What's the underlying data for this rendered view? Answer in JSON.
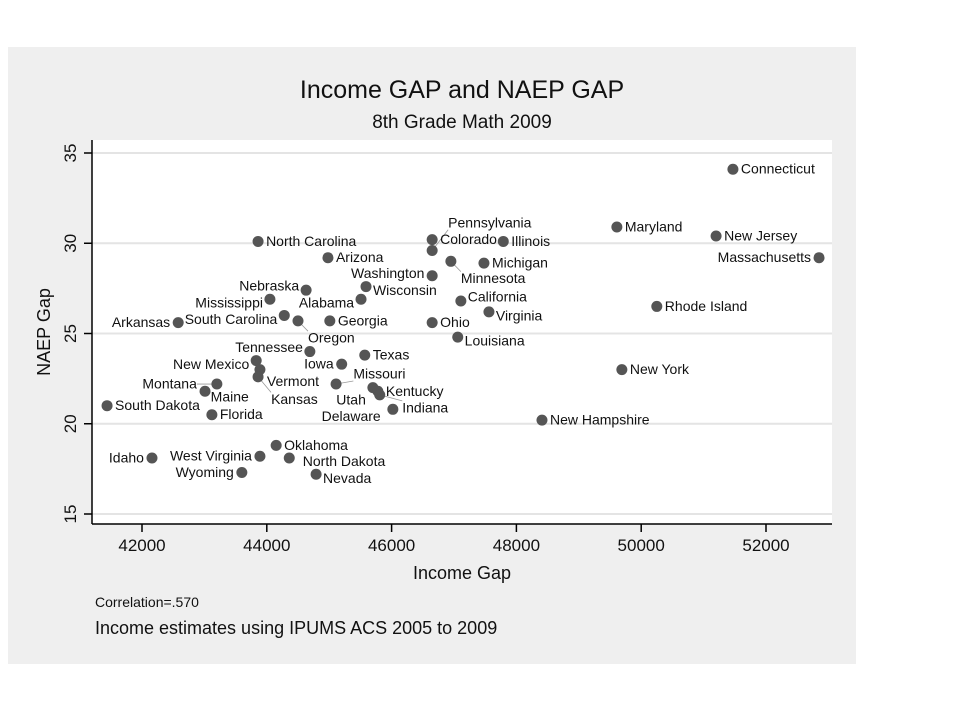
{
  "chart_data": {
    "type": "scatter",
    "title": "Income GAP and NAEP GAP",
    "subtitle": "8th Grade Math 2009",
    "xlabel": "Income Gap",
    "ylabel": "NAEP Gap",
    "xlim": [
      41300,
      53000
    ],
    "ylim": [
      15,
      35
    ],
    "xticks": [
      42000,
      44000,
      46000,
      48000,
      50000,
      52000
    ],
    "yticks": [
      15,
      20,
      25,
      30,
      35
    ],
    "grid": "horizontal",
    "notes": [
      "Correlation=.570",
      "Income estimates using IPUMS ACS 2005 to 2009"
    ],
    "colors": {
      "panel": "#efefef",
      "plot": "#ffffff",
      "marker": "#555555",
      "grid": "#e4e4e4"
    },
    "points": [
      {
        "label": "Connecticut",
        "x": 51470,
        "y": 34.1
      },
      {
        "label": "Maryland",
        "x": 49610,
        "y": 30.9
      },
      {
        "label": "New Jersey",
        "x": 51200,
        "y": 30.4
      },
      {
        "label": "Massachusetts",
        "x": 52850,
        "y": 29.2
      },
      {
        "label": "Rhode Island",
        "x": 50250,
        "y": 26.5
      },
      {
        "label": "New York",
        "x": 49690,
        "y": 23.0
      },
      {
        "label": "New Hampshire",
        "x": 48410,
        "y": 20.2
      },
      {
        "label": "North Carolina",
        "x": 43860,
        "y": 30.1
      },
      {
        "label": "Arizona",
        "x": 44980,
        "y": 29.2
      },
      {
        "label": "Colorado",
        "x": 46650,
        "y": 30.2
      },
      {
        "label": "Illinois",
        "x": 47790,
        "y": 30.1
      },
      {
        "label": "Pennsylvania",
        "x": 46650,
        "y": 29.6
      },
      {
        "label": "Minnesota",
        "x": 46950,
        "y": 29.0
      },
      {
        "label": "Michigan",
        "x": 47480,
        "y": 28.9
      },
      {
        "label": "Washington",
        "x": 46650,
        "y": 28.2
      },
      {
        "label": "Wisconsin",
        "x": 45590,
        "y": 27.6
      },
      {
        "label": "Nebraska",
        "x": 44630,
        "y": 27.4
      },
      {
        "label": "Mississippi",
        "x": 44050,
        "y": 26.9
      },
      {
        "label": "Alabama",
        "x": 45510,
        "y": 26.9
      },
      {
        "label": "California",
        "x": 47110,
        "y": 26.8
      },
      {
        "label": "Virginia",
        "x": 47560,
        "y": 26.2
      },
      {
        "label": "South Carolina",
        "x": 44280,
        "y": 26.0
      },
      {
        "label": "Oregon",
        "x": 44500,
        "y": 25.7
      },
      {
        "label": "Georgia",
        "x": 45010,
        "y": 25.7
      },
      {
        "label": "Arkansas",
        "x": 42580,
        "y": 25.6
      },
      {
        "label": "Ohio",
        "x": 46650,
        "y": 25.6
      },
      {
        "label": "Louisiana",
        "x": 47060,
        "y": 24.8
      },
      {
        "label": "Tennessee",
        "x": 44690,
        "y": 24.0
      },
      {
        "label": "New Mexico",
        "x": 43830,
        "y": 23.5
      },
      {
        "label": "Texas",
        "x": 45570,
        "y": 23.8
      },
      {
        "label": "Iowa",
        "x": 45200,
        "y": 23.3
      },
      {
        "label": "Vermont",
        "x": 43890,
        "y": 23.0
      },
      {
        "label": "Kansas",
        "x": 43860,
        "y": 22.6
      },
      {
        "label": "Montana",
        "x": 43200,
        "y": 22.2
      },
      {
        "label": "Maine",
        "x": 43010,
        "y": 21.8
      },
      {
        "label": "Missouri",
        "x": 45110,
        "y": 22.2
      },
      {
        "label": "Utah",
        "x": 45700,
        "y": 22.0
      },
      {
        "label": "Kentucky",
        "x": 45780,
        "y": 21.8
      },
      {
        "label": "Indiana",
        "x": 45810,
        "y": 21.6
      },
      {
        "label": "Delaware",
        "x": 46020,
        "y": 20.8
      },
      {
        "label": "South Dakota",
        "x": 41440,
        "y": 21.0
      },
      {
        "label": "Florida",
        "x": 43120,
        "y": 20.5
      },
      {
        "label": "Oklahoma",
        "x": 44150,
        "y": 18.8
      },
      {
        "label": "West Virginia",
        "x": 43890,
        "y": 18.2
      },
      {
        "label": "North Dakota",
        "x": 44360,
        "y": 18.1
      },
      {
        "label": "Idaho",
        "x": 42160,
        "y": 18.1
      },
      {
        "label": "Wyoming",
        "x": 43600,
        "y": 17.3
      },
      {
        "label": "Nevada",
        "x": 44790,
        "y": 17.2
      }
    ]
  }
}
